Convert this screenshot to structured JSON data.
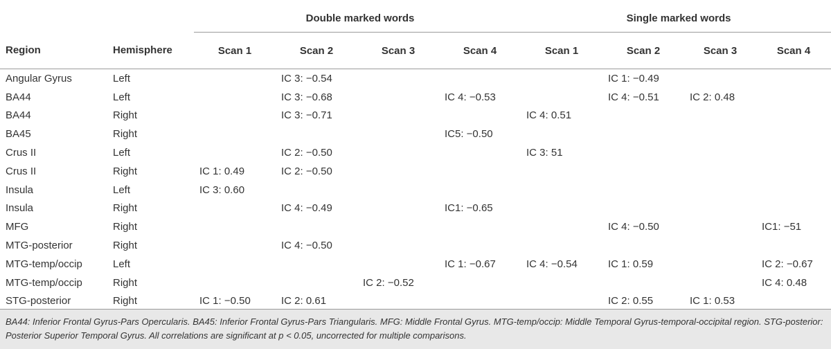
{
  "table": {
    "groups": [
      "Double marked words",
      "Single marked words"
    ],
    "columns": [
      "Region",
      "Hemisphere",
      "Scan 1",
      "Scan 2",
      "Scan 3",
      "Scan 4",
      "Scan 1",
      "Scan 2",
      "Scan 3",
      "Scan 4"
    ],
    "rows": [
      [
        "Angular Gyrus",
        "Left",
        "",
        "IC 3: −0.54",
        "",
        "",
        "",
        "IC 1: −0.49",
        "",
        ""
      ],
      [
        "BA44",
        "Left",
        "",
        "IC 3: −0.68",
        "",
        "IC 4: −0.53",
        "",
        "IC 4: −0.51",
        "IC 2: 0.48",
        ""
      ],
      [
        "BA44",
        "Right",
        "",
        "IC 3: −0.71",
        "",
        "",
        "IC 4: 0.51",
        "",
        "",
        ""
      ],
      [
        "BA45",
        "Right",
        "",
        "",
        "",
        "IC5: −0.50",
        "",
        "",
        "",
        ""
      ],
      [
        "Crus II",
        "Left",
        "",
        "IC 2: −0.50",
        "",
        "",
        "IC 3: 51",
        "",
        "",
        ""
      ],
      [
        "Crus II",
        "Right",
        "IC 1: 0.49",
        "IC 2: −0.50",
        "",
        "",
        "",
        "",
        "",
        ""
      ],
      [
        "Insula",
        "Left",
        "IC 3: 0.60",
        "",
        "",
        "",
        "",
        "",
        "",
        ""
      ],
      [
        "Insula",
        "Right",
        "",
        "IC 4: −0.49",
        "",
        "IC1: −0.65",
        "",
        "",
        "",
        ""
      ],
      [
        "MFG",
        "Right",
        "",
        "",
        "",
        "",
        "",
        "IC 4: −0.50",
        "",
        "IC1: −51"
      ],
      [
        "MTG-posterior",
        "Right",
        "",
        "IC 4: −0.50",
        "",
        "",
        "",
        "",
        "",
        ""
      ],
      [
        "MTG-temp/occip",
        "Left",
        "",
        "",
        "",
        "IC 1: −0.67",
        "IC 4: −0.54",
        "IC 1: 0.59",
        "",
        "IC 2: −0.67"
      ],
      [
        "MTG-temp/occip",
        "Right",
        "",
        "",
        "IC 2: −0.52",
        "",
        "",
        "",
        "",
        "IC 4: 0.48"
      ],
      [
        "STG-posterior",
        "Right",
        "IC 1: −0.50",
        "IC 2: 0.61",
        "",
        "",
        "",
        "IC 2: 0.55",
        "IC 1: 0.53",
        ""
      ]
    ]
  },
  "footnote": "BA44: Inferior Frontal Gyrus-Pars Opercularis. BA45: Inferior Frontal Gyrus-Pars Triangularis. MFG: Middle Frontal Gyrus. MTG-temp/occip: Middle Temporal Gyrus-temporal-occipital region. STG-posterior: Posterior Superior Temporal Gyrus. All correlations are significant at p < 0.05, uncorrected for multiple comparisons."
}
